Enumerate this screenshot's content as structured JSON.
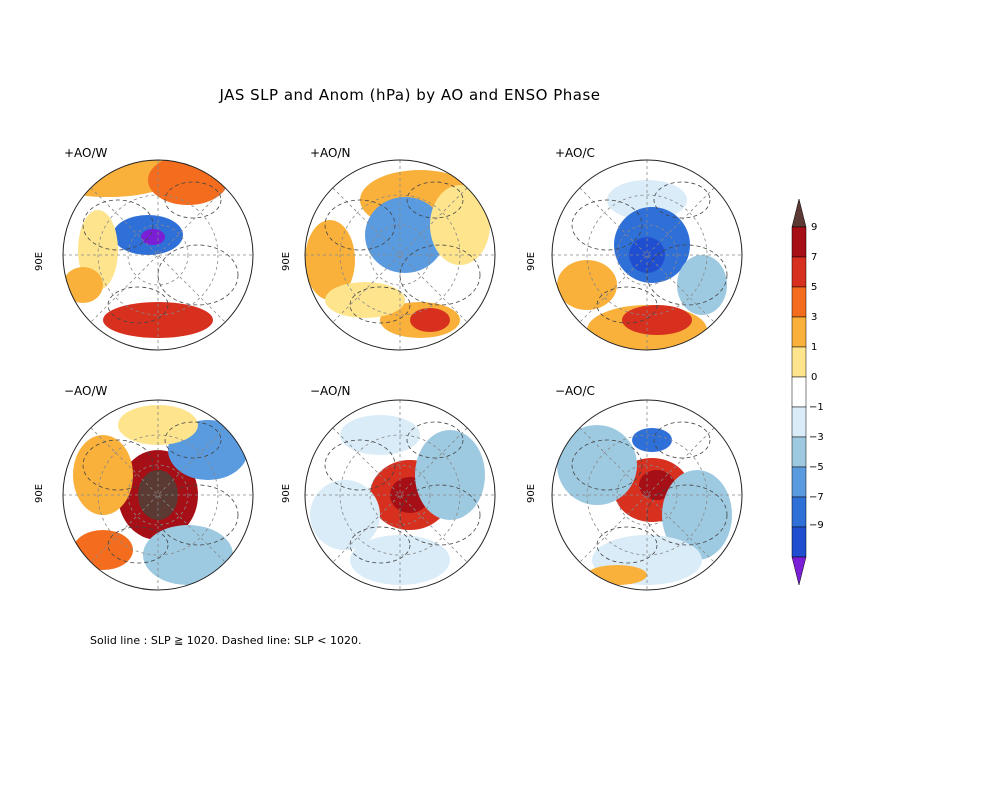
{
  "title": "JAS SLP and Anom (hPa) by AO and ENSO Phase",
  "longitude_label": "90E",
  "panels": [
    {
      "label": "+AO/W"
    },
    {
      "label": "+AO/N"
    },
    {
      "label": "+AO/C"
    },
    {
      "label": "−AO/W"
    },
    {
      "label": "−AO/N"
    },
    {
      "label": "−AO/C"
    }
  ],
  "colorbar": {
    "labels": [
      "9",
      "7",
      "5",
      "3",
      "1",
      "0",
      "−1",
      "−3",
      "−5",
      "−7",
      "−9"
    ],
    "colors": [
      "#5a3a32",
      "#a50f15",
      "#d7301f",
      "#f46d1e",
      "#f9b13c",
      "#fde48d",
      "#ffffff",
      "#d9ecf8",
      "#9ecae1",
      "#5a9be0",
      "#2f6fd8",
      "#1f4fd0",
      "#7b1fd6"
    ]
  },
  "footnote": "Solid line : SLP ≧ 1020.  Dashed line: SLP < 1020."
}
